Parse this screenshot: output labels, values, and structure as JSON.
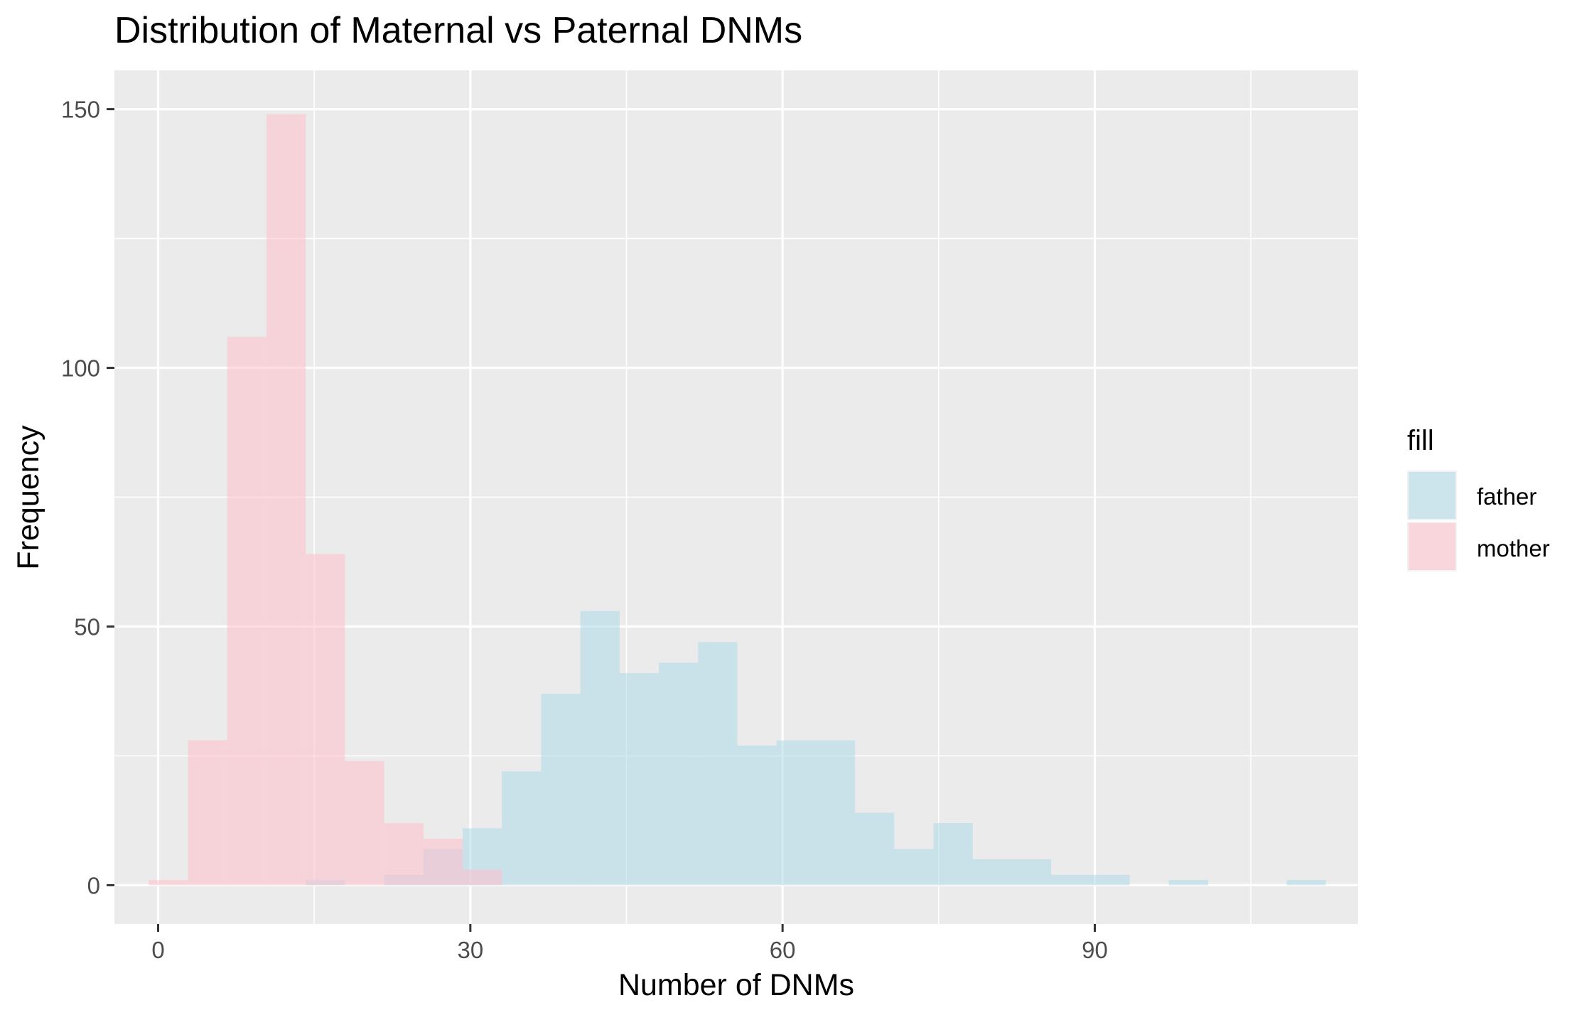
{
  "chart_data": {
    "type": "histogram",
    "title": "Distribution of Maternal vs Paternal DNMs",
    "xlabel": "Number of DNMs",
    "ylabel": "Frequency",
    "xlim": [
      -4.2,
      115.3
    ],
    "ylim": [
      -7.5,
      157.5
    ],
    "x_ticks": [
      0,
      30,
      60,
      90
    ],
    "y_ticks": [
      0,
      50,
      100,
      150
    ],
    "grid": true,
    "bin_width": 3.77,
    "bin_starts": [
      -0.9,
      2.87,
      6.64,
      10.41,
      14.18,
      17.95,
      21.72,
      25.49,
      29.26,
      33.03,
      36.8,
      40.57,
      44.34,
      48.11,
      51.88,
      55.65,
      59.42,
      63.19,
      66.96,
      70.73,
      74.5,
      78.27,
      82.04,
      85.81,
      89.58,
      93.35,
      97.12,
      100.89,
      104.66,
      108.43
    ],
    "legend": {
      "title": "fill",
      "position": "right"
    },
    "series": [
      {
        "name": "father",
        "color": "#add8e6",
        "values": [
          0,
          0,
          0,
          0,
          1,
          0,
          2,
          7,
          11,
          22,
          37,
          53,
          41,
          43,
          47,
          27,
          28,
          28,
          14,
          7,
          12,
          5,
          5,
          2,
          2,
          0,
          1,
          0,
          0,
          1
        ]
      },
      {
        "name": "mother",
        "color": "#ffc0cb",
        "values": [
          1,
          28,
          106,
          149,
          64,
          24,
          12,
          9,
          3,
          0,
          0,
          0,
          0,
          0,
          0,
          0,
          0,
          0,
          0,
          0,
          0,
          0,
          0,
          0,
          0,
          0,
          0,
          0,
          0,
          0
        ]
      }
    ]
  }
}
